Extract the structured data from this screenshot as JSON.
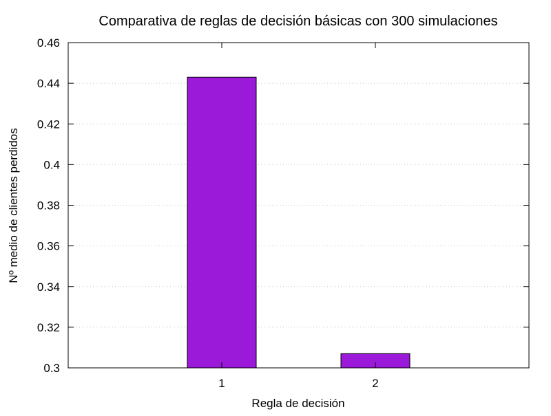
{
  "chart_data": {
    "type": "bar",
    "title": "Comparativa de reglas de decisión básicas con 300 simulaciones",
    "xlabel": "Regla de decisión",
    "ylabel": "Nº medio de clientes perdidos",
    "categories": [
      "1",
      "2"
    ],
    "values": [
      0.443,
      0.307
    ],
    "ylim": [
      0.3,
      0.46
    ],
    "yticks": [
      "0.3",
      "0.32",
      "0.34",
      "0.36",
      "0.38",
      "0.4",
      "0.42",
      "0.44",
      "0.46"
    ],
    "bar_color": "#9b19d8",
    "grid": "horizontal dotted",
    "legend": "none"
  }
}
